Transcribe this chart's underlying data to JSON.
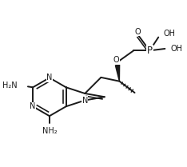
{
  "bg_color": "#ffffff",
  "line_color": "#1a1a1a",
  "line_width": 1.4,
  "font_size": 7.0,
  "font_family": "Arial",
  "figsize": [
    2.34,
    2.09
  ],
  "dpi": 100,
  "xlim": [
    0.5,
    5.2
  ],
  "ylim": [
    1.0,
    5.0
  ]
}
